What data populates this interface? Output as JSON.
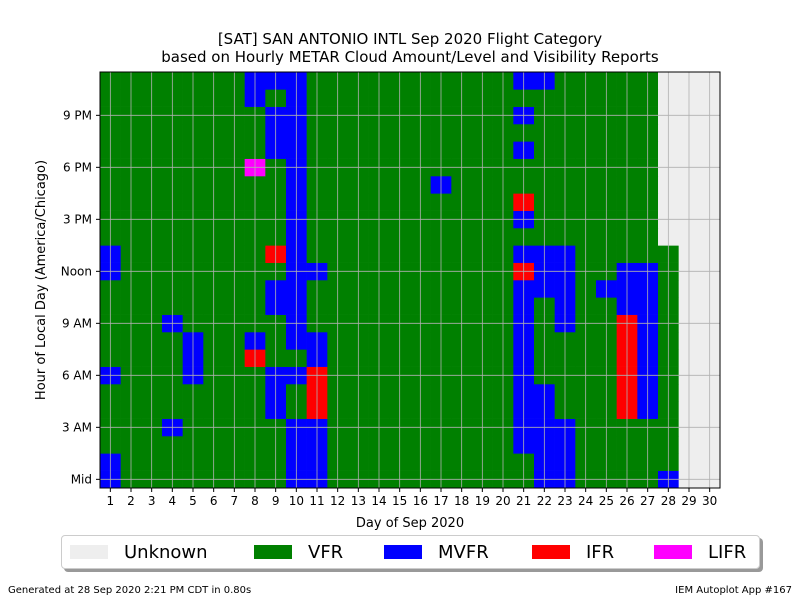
{
  "title_line1": "[SAT] SAN ANTONIO INTL Sep 2020 Flight Category",
  "title_line2": "based on Hourly METAR Cloud Amount/Level and Visibility Reports",
  "footer_left": "Generated at 28 Sep 2020 2:21 PM CDT in 0.80s",
  "footer_right": "IEM Autoplot App #167",
  "legend": [
    {
      "label": "Unknown",
      "color": "#eeeeee"
    },
    {
      "label": "VFR",
      "color": "#008000"
    },
    {
      "label": "MVFR",
      "color": "#0000ff"
    },
    {
      "label": "IFR",
      "color": "#ff0000"
    },
    {
      "label": "LIFR",
      "color": "#ff00ff"
    }
  ],
  "chart_data": {
    "type": "heatmap",
    "xlabel": "Day of Sep 2020",
    "ylabel": "Hour of Local Day (America/Chicago)",
    "x_ticks": [
      "1",
      "2",
      "3",
      "4",
      "5",
      "6",
      "7",
      "8",
      "9",
      "10",
      "11",
      "12",
      "13",
      "14",
      "15",
      "16",
      "17",
      "18",
      "19",
      "20",
      "21",
      "22",
      "23",
      "24",
      "25",
      "26",
      "27",
      "28",
      "29",
      "30"
    ],
    "y_ticks": [
      {
        "hour": 0,
        "label": "Mid"
      },
      {
        "hour": 3,
        "label": "3 AM"
      },
      {
        "hour": 6,
        "label": "6 AM"
      },
      {
        "hour": 9,
        "label": "9 AM"
      },
      {
        "hour": 12,
        "label": "Noon"
      },
      {
        "hour": 15,
        "label": "3 PM"
      },
      {
        "hour": 18,
        "label": "6 PM"
      },
      {
        "hour": 21,
        "label": "9 PM"
      }
    ],
    "category_codes": {
      "U": "Unknown",
      "V": "VFR",
      "M": "MVFR",
      "I": "IFR",
      "L": "LIFR"
    },
    "colors": {
      "U": "#eeeeee",
      "V": "#008000",
      "M": "#0000ff",
      "I": "#ff0000",
      "L": "#ff00ff"
    },
    "grid": true,
    "days": 30,
    "hours": 24,
    "rows_by_hour": [
      "MVVVVVVVVMMVVVVVVVVVVMMVVVVMUU",
      "MVVVVVVVVMMVVVVVVVVVVMMVVVVVUU",
      "VVVVVVVVVMMVVVVVVVVVMMMVVVVVUU",
      "VVVMVVVVVMMVVVVVVVVVMMMVVVVVUU",
      "VVVVVVVVMVIVVVVVVVVVMMVVVIMVUU",
      "VVVVVVVVMVIVVVVVVVVVMMVVVIMVUU",
      "MVVVMVVVMMIVVVVVVVVVMVVVVIMVUU",
      "VVVVMVVIVVMVVVVVVVVVMVVVVIMVUU",
      "VVVVMVVMVMMVVVVVVVVVMVVVVIMVUU",
      "VVVMVVVVVMVVVVVVVVVVMVMVVIMVUU",
      "VVVVVVVVMMVVVVVVVVVVMVMVVMMVUU",
      "VVVVVVVVMMVVVVVVVVVVMMMVMMMVUU",
      "MVVVVVVVVMMVVVVVVVVVIMMVVMMVUU",
      "MVVVVVVVIMVVVVVVVVVVMMMVVVVVUU",
      "VVVVVVVVVMVVVVVVVVVVVVVVVVVUUU",
      "VVVVVVVVVMVVVVVVVVVVMVVVVVVUUU",
      "VVVVVVVVVMVVVVVVVVVVIVVVVVVUUU",
      "VVVVVVVVVMVVVVVVMVVVVVVVVVVUUU",
      "VVVVVVVLVMVVVVVVVVVVVVVVVVVUUU",
      "VVVVVVVVMMVVVVVVVVVVMVVVVVVUUU",
      "VVVVVVVVMMVVVVVVVVVVVVVVVVVUUU",
      "VVVVVVVVMMVVVVVVVVVVMVVVVVVUUU",
      "VVVVVVVMVMVVVVVVVVVVVVVVVVVUUU",
      "VVVVVVVMMMVVVVVVVVVVMMVVVVVUUU"
    ]
  }
}
